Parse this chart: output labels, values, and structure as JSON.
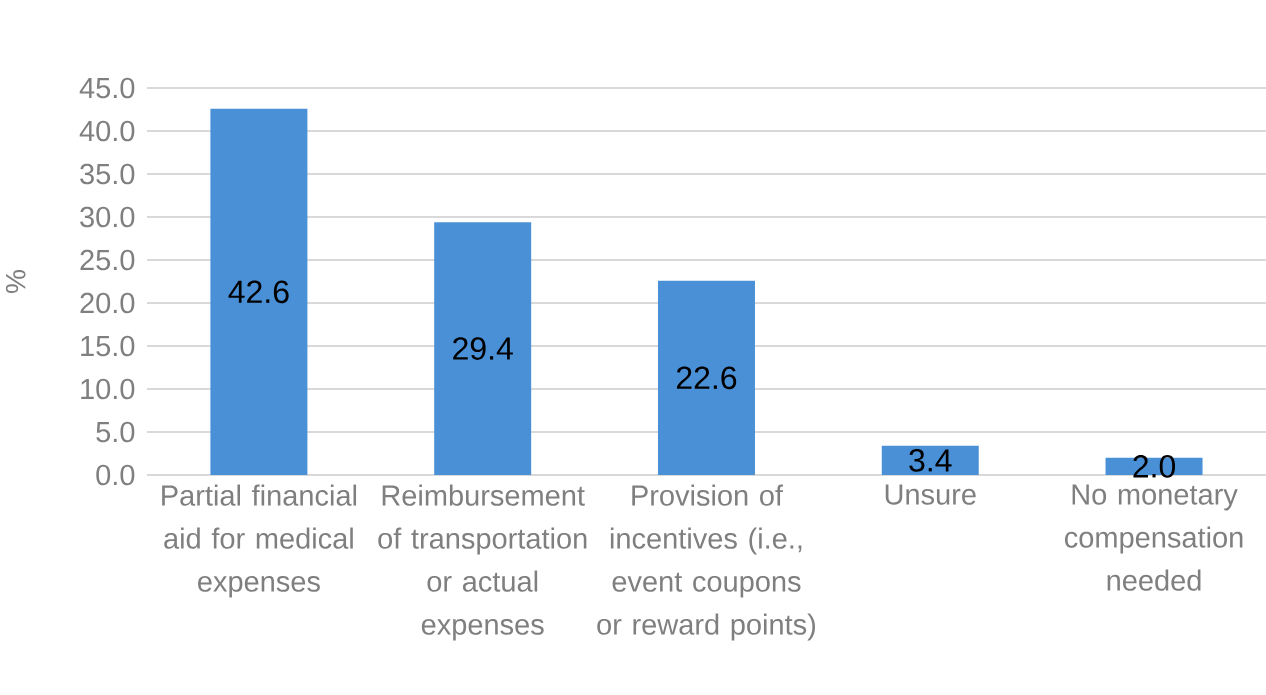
{
  "chart_data": {
    "type": "bar",
    "ylabel": "%",
    "categories": [
      "Partial financial aid for medical expenses",
      "Reimbursement of transportation or actual expenses",
      "Provision of incentives (i.e., event coupons or reward points)",
      "Unsure",
      "No monetary compensation needed"
    ],
    "values": [
      42.6,
      29.4,
      22.6,
      3.4,
      2.0
    ],
    "value_labels": [
      "42.6",
      "29.4",
      "22.6",
      "3.4",
      "2.0"
    ],
    "color": "#4a90d6",
    "ylim": [
      0,
      45
    ],
    "yticks": [
      {
        "value": 0,
        "label": "0.0"
      },
      {
        "value": 5,
        "label": "5.0"
      },
      {
        "value": 10,
        "label": "10.0"
      },
      {
        "value": 15,
        "label": "15.0"
      },
      {
        "value": 20,
        "label": "20.0"
      },
      {
        "value": 25,
        "label": "25.0"
      },
      {
        "value": 30,
        "label": "30.0"
      },
      {
        "value": 35,
        "label": "35.0"
      },
      {
        "value": 40,
        "label": "40.0"
      },
      {
        "value": 45,
        "label": "45.0"
      }
    ],
    "grid": "y"
  }
}
